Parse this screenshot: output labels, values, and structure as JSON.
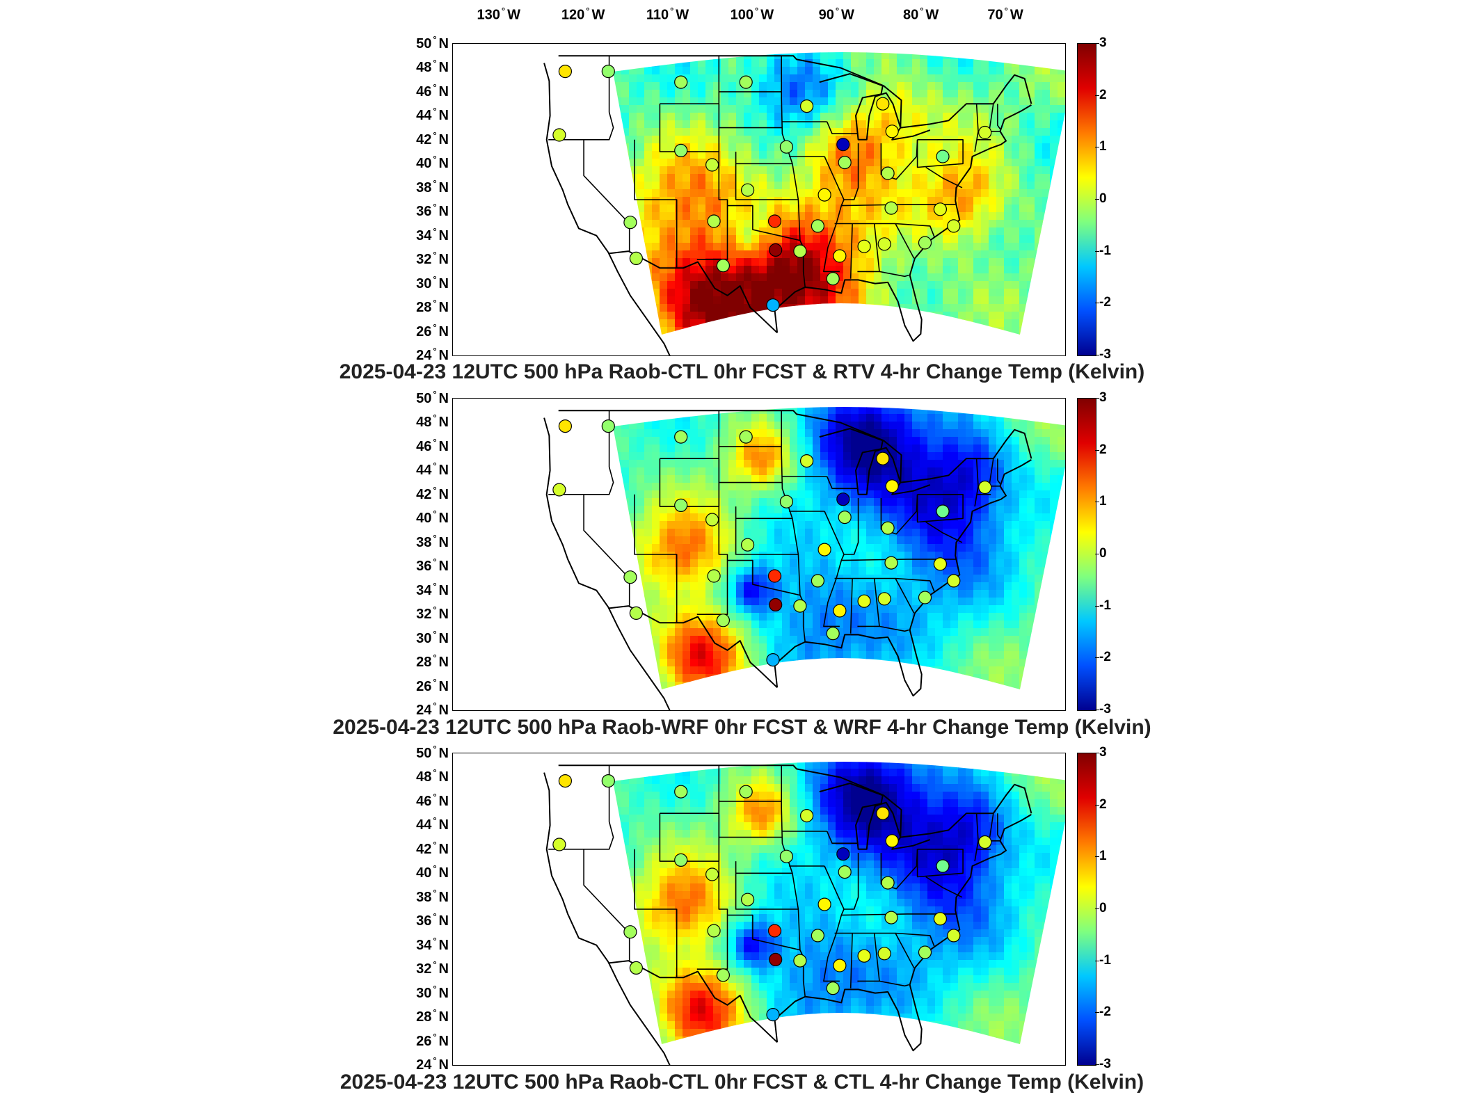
{
  "lon_labels": [
    "130",
    "120",
    "110",
    "100",
    "90",
    "80",
    "70"
  ],
  "lon_hemisphere": "W",
  "lat_labels": [
    "50",
    "48",
    "46",
    "44",
    "42",
    "40",
    "38",
    "36",
    "34",
    "32",
    "30",
    "28",
    "26",
    "24"
  ],
  "lat_hemisphere": "N",
  "degree_symbol": "°",
  "colorbar": {
    "ticks": [
      "3",
      "2",
      "1",
      "0",
      "-1",
      "-2",
      "-3"
    ],
    "range": [
      -3,
      3
    ],
    "colors": [
      "#00008f",
      "#0050ff",
      "#00c8ff",
      "#7fff7f",
      "#ffff00",
      "#ff7a00",
      "#e00000",
      "#800000"
    ]
  },
  "panels": [
    {
      "title": "2025-04-23 12UTC 500 hPa Raob-CTL 0hr FCST & RTV 4-hr Change Temp (Kelvin)"
    },
    {
      "title": "2025-04-23 12UTC 500 hPa Raob-WRF 0hr FCST & WRF 4-hr Change Temp (Kelvin)"
    },
    {
      "title": "2025-04-23 12UTC 500 hPa Raob-CTL 0hr FCST & CTL 4-hr Change Temp (Kelvin)"
    }
  ],
  "stations": [
    {
      "lon": -122.2,
      "lat": 47.7,
      "v": 0.9
    },
    {
      "lon": -117.1,
      "lat": 47.7,
      "v": 0.1
    },
    {
      "lon": -108.5,
      "lat": 46.8,
      "v": 0.2
    },
    {
      "lon": -100.8,
      "lat": 46.8,
      "v": 0.2
    },
    {
      "lon": -93.6,
      "lat": 44.8,
      "v": 0.5
    },
    {
      "lon": -84.6,
      "lat": 45.0,
      "v": 0.9
    },
    {
      "lon": -122.9,
      "lat": 42.4,
      "v": 0.5
    },
    {
      "lon": -108.5,
      "lat": 41.1,
      "v": 0.1
    },
    {
      "lon": -89.3,
      "lat": 41.6,
      "v": -2.7
    },
    {
      "lon": -83.5,
      "lat": 42.7,
      "v": 0.8
    },
    {
      "lon": -72.5,
      "lat": 42.6,
      "v": 0.5
    },
    {
      "lon": -96.0,
      "lat": 41.4,
      "v": 0.1
    },
    {
      "lon": -89.1,
      "lat": 40.1,
      "v": 0.2
    },
    {
      "lon": -84.0,
      "lat": 39.2,
      "v": 0.3
    },
    {
      "lon": -77.5,
      "lat": 40.6,
      "v": -0.1
    },
    {
      "lon": -104.8,
      "lat": 39.9,
      "v": 0.4
    },
    {
      "lon": -100.6,
      "lat": 37.8,
      "v": 0.3
    },
    {
      "lon": -91.5,
      "lat": 37.4,
      "v": 0.8
    },
    {
      "lon": -83.6,
      "lat": 36.3,
      "v": 0.3
    },
    {
      "lon": -77.8,
      "lat": 36.2,
      "v": 0.6
    },
    {
      "lon": -114.5,
      "lat": 35.1,
      "v": 0.2
    },
    {
      "lon": -104.6,
      "lat": 35.2,
      "v": 0.3
    },
    {
      "lon": -97.4,
      "lat": 35.2,
      "v": 2.0
    },
    {
      "lon": -92.3,
      "lat": 34.8,
      "v": 0.2
    },
    {
      "lon": -97.3,
      "lat": 32.8,
      "v": 2.9
    },
    {
      "lon": -94.4,
      "lat": 32.7,
      "v": 0.3
    },
    {
      "lon": -89.7,
      "lat": 32.3,
      "v": 0.8
    },
    {
      "lon": -86.8,
      "lat": 33.1,
      "v": 0.6
    },
    {
      "lon": -84.4,
      "lat": 33.3,
      "v": 0.5
    },
    {
      "lon": -79.6,
      "lat": 33.4,
      "v": 0.2
    },
    {
      "lon": -76.2,
      "lat": 34.8,
      "v": 0.5
    },
    {
      "lon": -113.8,
      "lat": 32.1,
      "v": 0.3
    },
    {
      "lon": -103.5,
      "lat": 31.5,
      "v": 0.2
    },
    {
      "lon": -97.6,
      "lat": 28.2,
      "v": -1.2
    },
    {
      "lon": -90.5,
      "lat": 30.4,
      "v": 0.2
    }
  ]
}
